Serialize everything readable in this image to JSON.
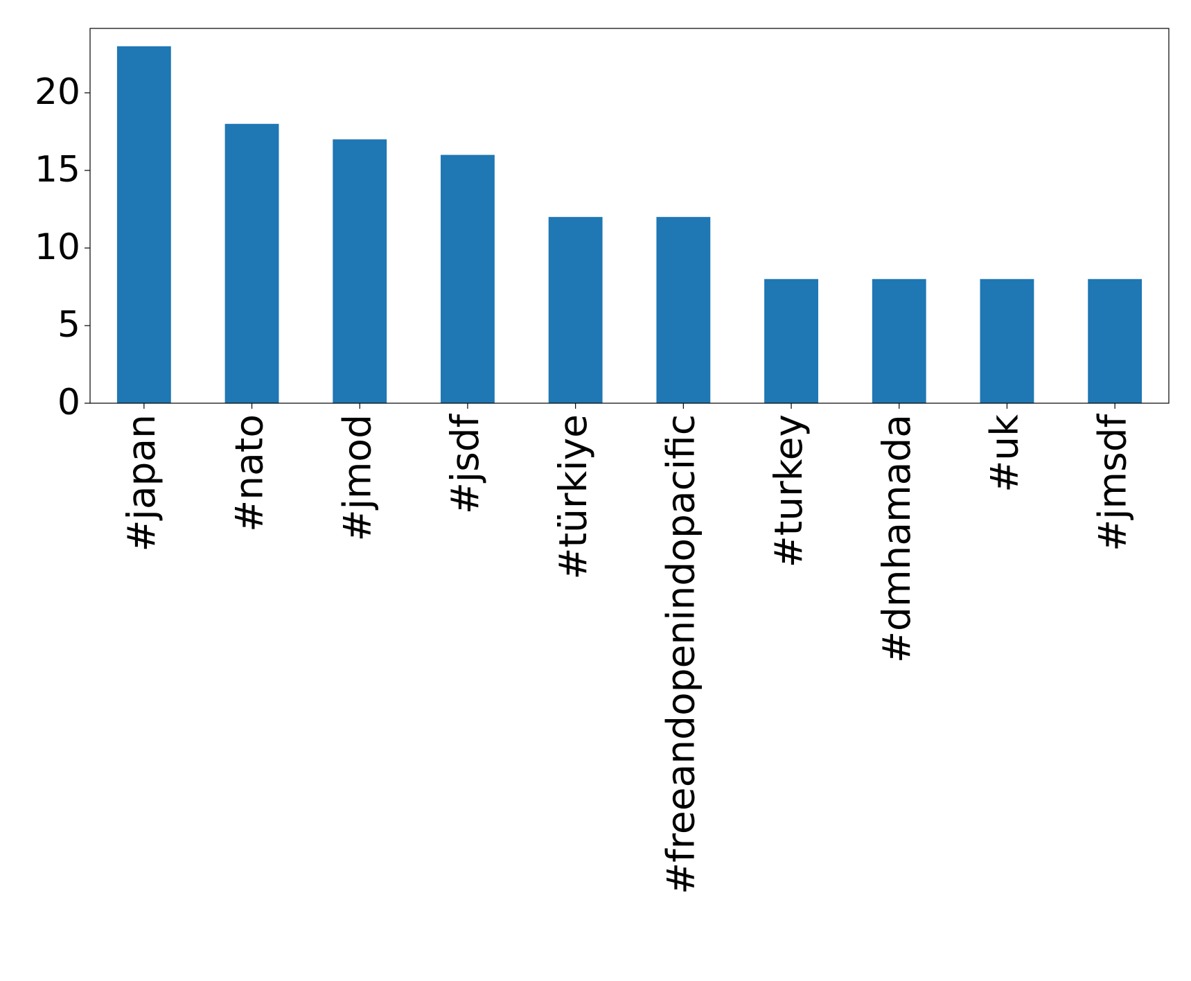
{
  "chart_data": {
    "type": "bar",
    "categories": [
      "#japan",
      "#nato",
      "#jmod",
      "#jsdf",
      "#türkiye",
      "#freeandopenindopacific",
      "#turkey",
      "#dmhamada",
      "#uk",
      "#jmsdf"
    ],
    "values": [
      23,
      18,
      17,
      16,
      12,
      12,
      8,
      8,
      8,
      8
    ],
    "color": "#1f77b4",
    "ylim": [
      0,
      24.15
    ],
    "yticks": [
      0,
      5,
      10,
      15,
      20
    ],
    "grid": false
  }
}
